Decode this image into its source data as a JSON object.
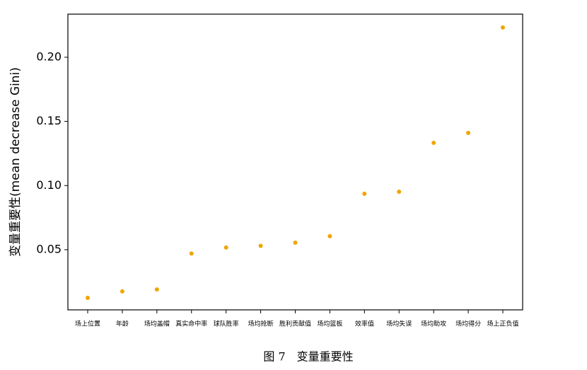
{
  "chart_data": {
    "type": "scatter",
    "ylabel": "变量重要性(mean decrease Gini)",
    "caption": "图 7　变量重要性",
    "categories": [
      "场上位置",
      "年龄",
      "场均盖帽",
      "真实命中率",
      "球队胜率",
      "场均抢断",
      "胜利贡献值",
      "场均篮板",
      "效率值",
      "场均失误",
      "场均助攻",
      "场均得分",
      "场上正负值"
    ],
    "values": [
      0.0125,
      0.0175,
      0.019,
      0.047,
      0.0517,
      0.053,
      0.0555,
      0.0605,
      0.0936,
      0.0952,
      0.1333,
      0.141,
      0.2232
    ],
    "color": "#f0a500",
    "ylim": [
      0.0031,
      0.2336
    ],
    "yticks": [
      0.05,
      {
        "value": 0.1,
        "label": "0.10"
      },
      0.15,
      {
        "value": 0.2,
        "label": "0.20"
      }
    ]
  }
}
